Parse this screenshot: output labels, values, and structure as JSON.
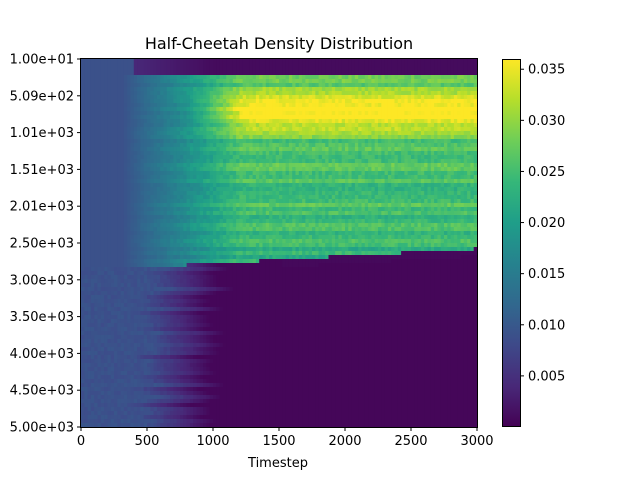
{
  "chart_data": {
    "type": "heatmap",
    "title": "Half-Cheetah Density Distribution",
    "xlabel": "Timestep",
    "ylabel": "",
    "xlim": [
      0,
      3000
    ],
    "x_ticks": [
      0,
      500,
      1000,
      1500,
      2000,
      2500,
      3000
    ],
    "x_tick_labels": [
      "0",
      "500",
      "1000",
      "1500",
      "2000",
      "2500",
      "3000"
    ],
    "y_tick_labels": [
      "1.00e+01",
      "5.09e+02",
      "1.01e+03",
      "1.51e+03",
      "2.01e+03",
      "2.50e+03",
      "3.00e+03",
      "3.50e+03",
      "4.00e+03",
      "4.50e+03",
      "5.00e+03"
    ],
    "y_direction": "top-to-bottom",
    "colormap": "viridis",
    "colorbar": {
      "min": 0.0,
      "max": 0.036,
      "ticks": [
        0.005,
        0.01,
        0.015,
        0.02,
        0.025,
        0.03,
        0.035
      ],
      "tick_labels": [
        "0.005",
        "0.010",
        "0.015",
        "0.020",
        "0.025",
        "0.030",
        "0.035"
      ]
    },
    "description_of_regions": {
      "early_timesteps_density": 0.009,
      "top_band_density_late": 0.001,
      "high_density_band_rows": "5.09e+02 to 2.50e+03 after timestep ~800",
      "peak_density": 0.035,
      "low_density_region": "rows above 2.60e+03 after timestep ~1500"
    }
  }
}
